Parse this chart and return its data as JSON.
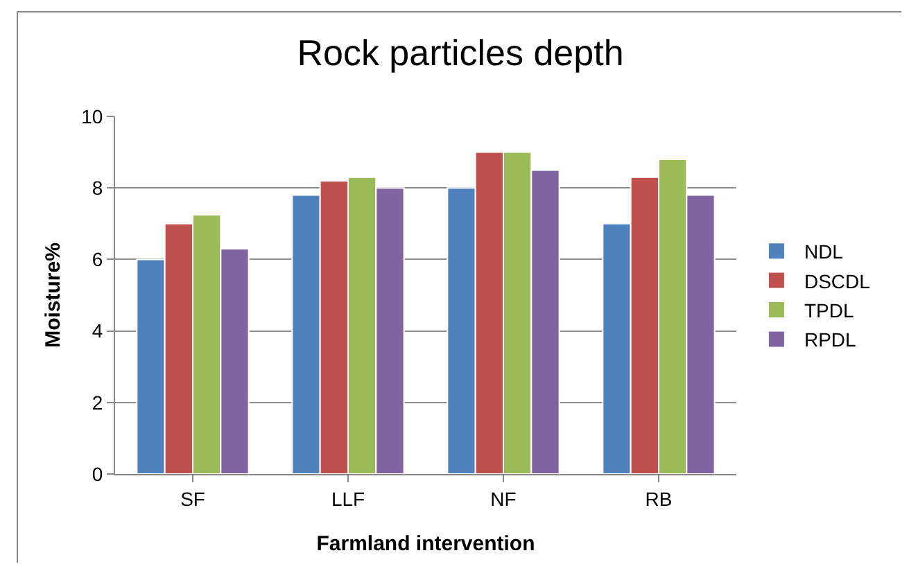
{
  "chart_data": {
    "type": "bar",
    "title": "Rock particles depth",
    "xlabel": "Farmland intervention",
    "ylabel": "Moisture%",
    "categories": [
      "SF",
      "LLF",
      "NF",
      "RB"
    ],
    "series": [
      {
        "name": "NDL",
        "color": "#4f81bd",
        "values": [
          6.0,
          7.8,
          8.0,
          7.0
        ]
      },
      {
        "name": "DSCDL",
        "color": "#c0504d",
        "values": [
          7.0,
          8.2,
          9.0,
          8.3
        ]
      },
      {
        "name": "TPDL",
        "color": "#9bbb59",
        "values": [
          7.25,
          8.3,
          9.0,
          8.8
        ]
      },
      {
        "name": "RPDL",
        "color": "#8064a2",
        "values": [
          6.3,
          8.0,
          8.5,
          7.8
        ]
      }
    ],
    "ylim": [
      0,
      10
    ],
    "yticks": [
      0,
      2,
      4,
      6,
      8,
      10
    ],
    "grid": "y",
    "legend": "right"
  }
}
